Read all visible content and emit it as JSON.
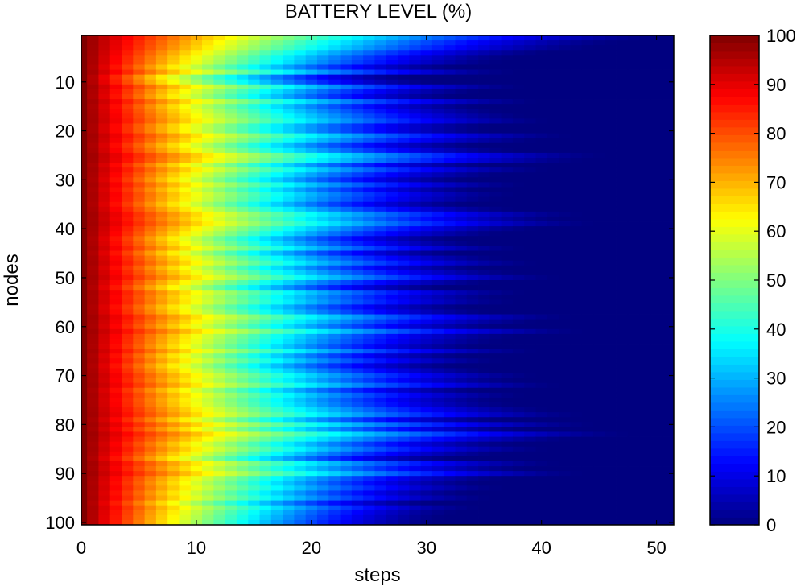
{
  "chart_data": {
    "type": "heatmap",
    "title": "BATTERY LEVEL (%)",
    "xlabel": "steps",
    "ylabel": "nodes",
    "x_range": [
      0,
      51
    ],
    "y_range": [
      1,
      100
    ],
    "xlim": [
      0,
      51.5
    ],
    "ylim": [
      100.5,
      0.5
    ],
    "x_ticks": [
      0,
      10,
      20,
      30,
      40,
      50
    ],
    "y_ticks": [
      10,
      20,
      30,
      40,
      50,
      60,
      70,
      80,
      90,
      100
    ],
    "colorbar": {
      "colormap": "jet",
      "range": [
        0,
        100
      ],
      "ticks": [
        0,
        10,
        20,
        30,
        40,
        50,
        60,
        70,
        80,
        90,
        100
      ]
    },
    "depletion_steps_per_node": [
      51,
      47,
      45,
      41,
      38,
      37,
      33,
      38,
      29,
      31,
      39,
      35,
      33,
      40,
      35,
      37,
      39,
      41,
      36,
      36,
      43,
      40,
      35,
      38,
      46,
      44,
      36,
      41,
      37,
      34,
      39,
      35,
      38,
      37,
      34,
      38,
      44,
      42,
      45,
      40,
      37,
      33,
      35,
      39,
      33,
      37,
      40,
      35,
      38,
      42,
      36,
      32,
      39,
      37,
      38,
      34,
      36,
      43,
      40,
      37,
      44,
      38,
      37,
      35,
      40,
      34,
      37,
      33,
      36,
      40,
      38,
      42,
      35,
      39,
      37,
      38,
      41,
      44,
      37,
      45,
      39,
      48,
      43,
      38,
      41,
      37,
      33,
      42,
      39,
      44,
      37,
      35,
      37,
      34,
      36,
      31,
      35,
      33,
      32,
      31
    ]
  }
}
